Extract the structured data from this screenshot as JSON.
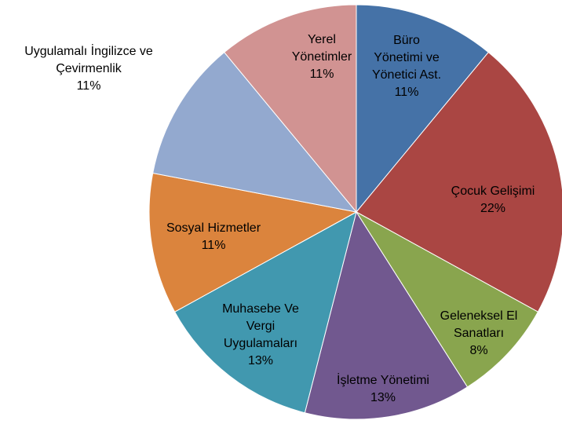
{
  "chart_data": {
    "type": "pie",
    "categories": [
      "Büro Yönetimi ve Yönetici Ast.",
      "Çocuk Gelişimi",
      "Geleneksel El Sanatları",
      "İşletme Yönetimi",
      "Muhasebe Ve Vergi Uygulamaları",
      "Sosyal Hizmetler",
      "Uygulamalı İngilizce ve Çevirmenlik",
      "Yerel Yönetimler"
    ],
    "values": [
      11,
      22,
      8,
      13,
      13,
      11,
      11,
      11
    ],
    "value_labels": [
      "11%",
      "22%",
      "8%",
      "13%",
      "13%",
      "11%",
      "11%",
      "11%"
    ],
    "colors": [
      "#4572a7",
      "#aa4643",
      "#89a54e",
      "#71588f",
      "#4198af",
      "#db843d",
      "#93a9cf",
      "#d19392"
    ]
  }
}
